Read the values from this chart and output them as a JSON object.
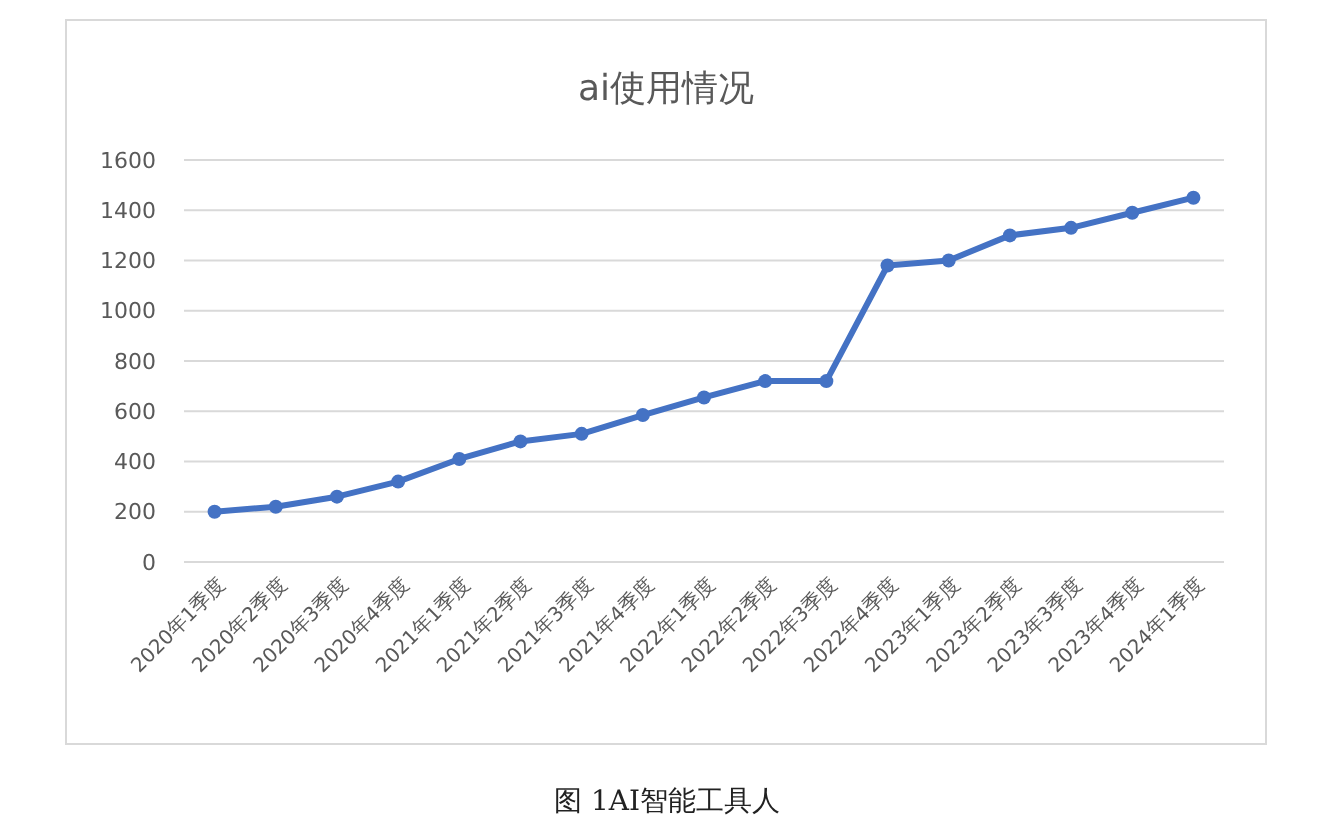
{
  "chart_data": {
    "type": "line",
    "title": "ai使用情况",
    "categories": [
      "2020年1季度",
      "2020年2季度",
      "2020年3季度",
      "2020年4季度",
      "2021年1季度",
      "2021年2季度",
      "2021年3季度",
      "2021年4季度",
      "2022年1季度",
      "2022年2季度",
      "2022年3季度",
      "2022年4季度",
      "2023年1季度",
      "2023年2季度",
      "2023年3季度",
      "2023年4季度",
      "2024年1季度"
    ],
    "series": [
      {
        "color": "#4472c4",
        "values": [
          200,
          220,
          260,
          320,
          410,
          480,
          510,
          585,
          655,
          720,
          720,
          1180,
          1200,
          1300,
          1330,
          1390,
          1450
        ]
      }
    ],
    "ylim": [
      0,
      1600
    ],
    "yticks": [
      0,
      200,
      400,
      600,
      800,
      1000,
      1200,
      1400,
      1600
    ],
    "grid": "y",
    "marker": "circle",
    "line_style": "solid",
    "annotations": [
      "图 1AI智能工具人"
    ]
  }
}
